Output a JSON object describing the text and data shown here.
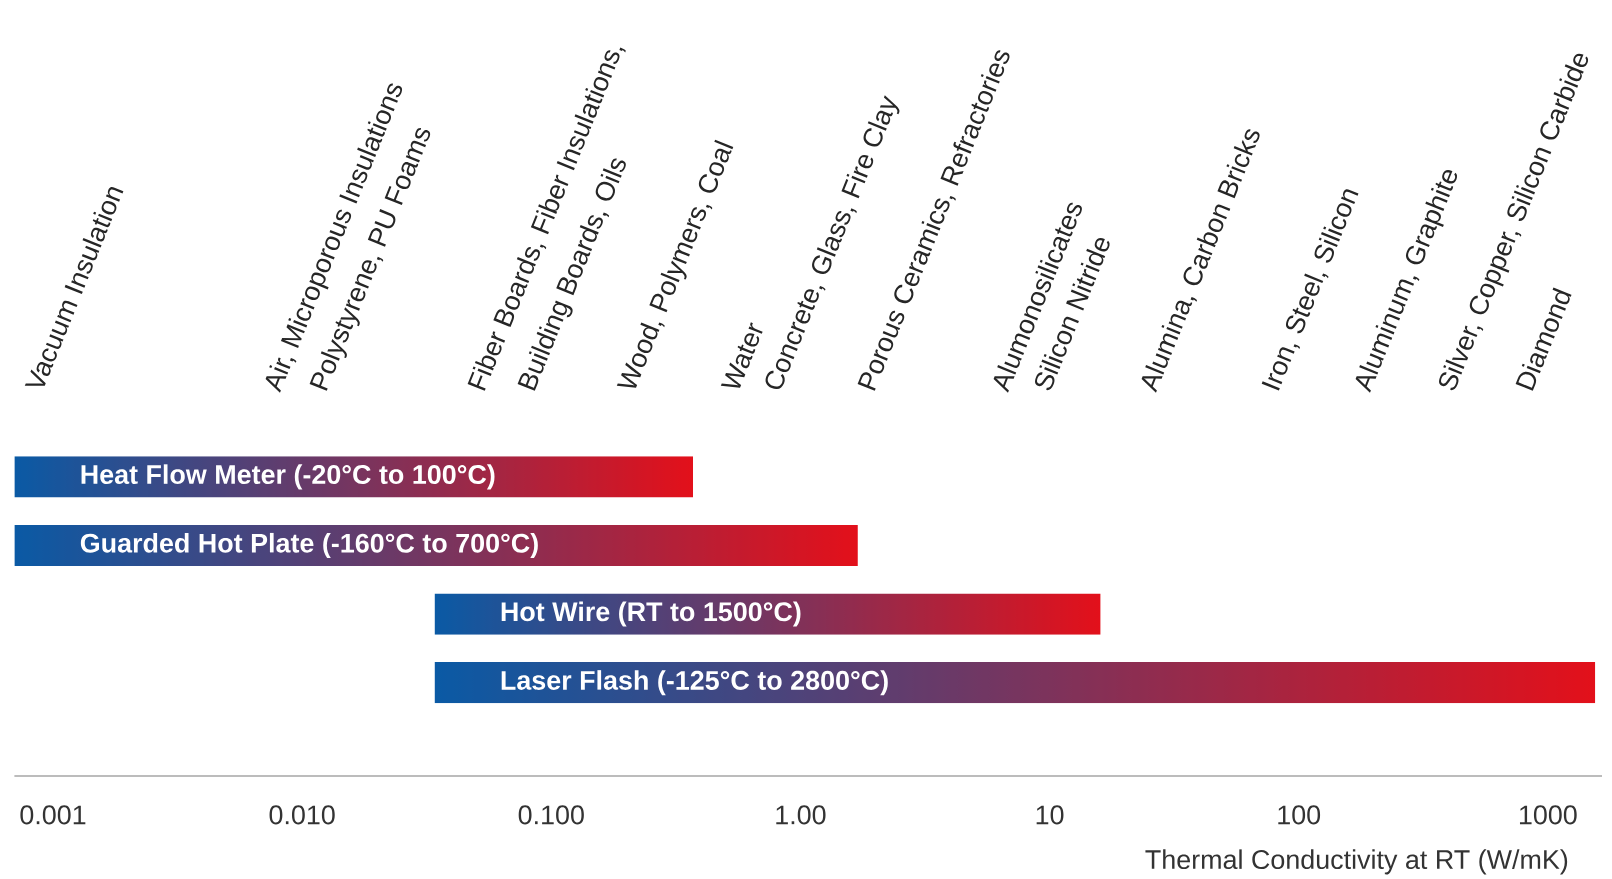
{
  "chart_data": {
    "type": "bar",
    "orientation": "horizontal",
    "log": "x",
    "tick_labels": "x",
    "xlabel": "Thermal Conductivity at RT (W/mK)",
    "categories": [
      "Heat Flow Meter (-20°C to 100°C)",
      "Guarded Hot Plate (-160°C to 700°C)",
      "Hot Wire (RT to 1500°C)",
      "Laser Flash (-125°C to 2800°C)"
    ],
    "base": [
      0.0007,
      0.0007,
      0.034,
      0.034
    ],
    "values": [
      0.37,
      1.7,
      16,
      1550
    ],
    "color": "#0a5aa5",
    "xlim": [
      0.0007,
      1650
    ],
    "xticks": [
      {
        "value": 0.001,
        "label": "0.001"
      },
      {
        "value": 0.01,
        "label": "0.010"
      },
      {
        "value": 0.1,
        "label": "0.100"
      },
      {
        "value": 1,
        "label": "1.00"
      },
      {
        "value": 10,
        "label": "10"
      },
      {
        "value": 100,
        "label": "100"
      },
      {
        "value": 1000,
        "label": "1000"
      }
    ],
    "annotations": [
      "Vacuum Insulation",
      "Air, Microporous Insulations",
      "Polystyrene, PU Foams",
      "Fiber Boards, Fiber Insulations,",
      "Building Boards, Oils",
      "Wood, Polymers, Coal",
      "Water",
      "Concrete, Glass, Fire Clay",
      "Porous Ceramics, Refractories",
      "Alumonosilicates",
      "Silicon Nitride",
      "Alumina, Carbon Bricks",
      "Iron, Steel, Silicon",
      "Aluminum, Graphite",
      "Silver, Copper, Silicon Carbide",
      "Diamond"
    ]
  }
}
